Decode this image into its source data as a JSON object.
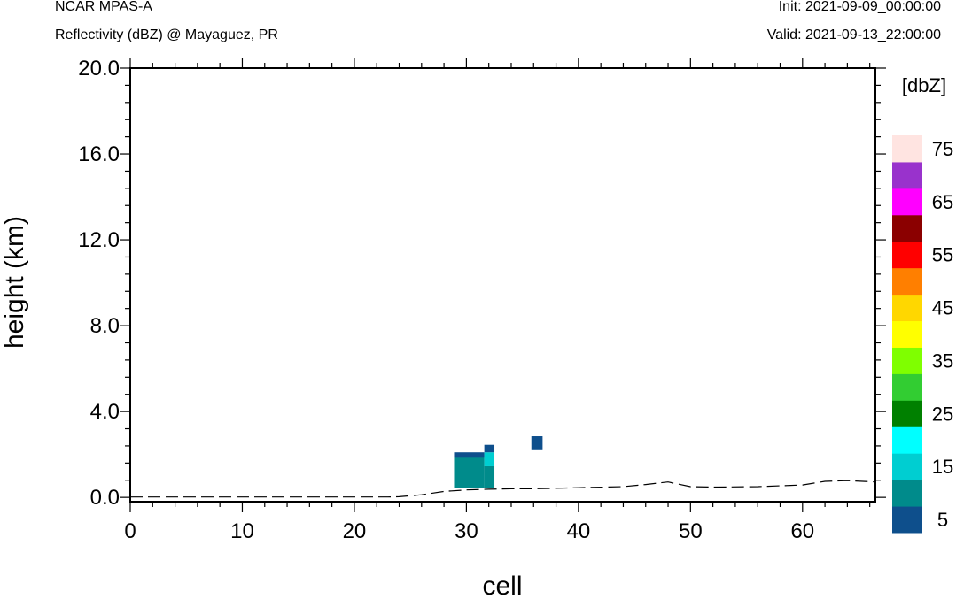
{
  "header": {
    "title": "NCAR MPAS-A",
    "subtitle": "Reflectivity (dBZ) @ Mayaguez, PR",
    "init": "Init: 2021-09-09_00:00:00",
    "valid": "Valid: 2021-09-13_22:00:00"
  },
  "chart_data": {
    "type": "heatmap",
    "xlabel": "cell",
    "ylabel": "height (km)",
    "xlim": [
      0,
      66.5
    ],
    "ylim": [
      -0.2,
      20.0
    ],
    "x_ticks": [
      0,
      10,
      20,
      30,
      40,
      50,
      60
    ],
    "x_tick_labels": [
      "0",
      "10",
      "20",
      "30",
      "40",
      "50",
      "60"
    ],
    "y_ticks": [
      0,
      4,
      8,
      12,
      16,
      20
    ],
    "y_tick_labels": [
      "0.0",
      "4.0",
      "8.0",
      "12.0",
      "16.0",
      "20.0"
    ],
    "grid": false,
    "colorbar": {
      "title": "[dbZ]",
      "levels": [
        5,
        10,
        15,
        20,
        25,
        30,
        35,
        40,
        45,
        50,
        55,
        60,
        65,
        70,
        75
      ],
      "colors": [
        "#0e4f8c",
        "#008b8b",
        "#00ced1",
        "#00ffff",
        "#008000",
        "#32cd32",
        "#7fff00",
        "#ffff00",
        "#ffd700",
        "#ff7f00",
        "#ff0000",
        "#8b0000",
        "#ff00ff",
        "#9932cc",
        "#ffe4e1"
      ],
      "tick_labels": [
        "5",
        "15",
        "25",
        "35",
        "45",
        "55",
        "65",
        "75"
      ]
    },
    "cells": [
      {
        "x0": 28.9,
        "x1": 31.6,
        "y0": 0.45,
        "y1": 2.05,
        "dbz": 10
      },
      {
        "x0": 28.9,
        "x1": 31.6,
        "y0": 1.85,
        "y1": 2.1,
        "dbz": 5
      },
      {
        "x0": 31.6,
        "x1": 32.5,
        "y0": 0.45,
        "y1": 1.45,
        "dbz": 10
      },
      {
        "x0": 31.6,
        "x1": 32.5,
        "y0": 1.45,
        "y1": 2.1,
        "dbz": 15
      },
      {
        "x0": 31.6,
        "x1": 32.5,
        "y0": 2.1,
        "y1": 2.45,
        "dbz": 5
      },
      {
        "x0": 35.8,
        "x1": 36.8,
        "y0": 2.2,
        "y1": 2.85,
        "dbz": 5
      }
    ],
    "terrain": {
      "x": [
        0,
        23,
        24,
        26,
        28,
        30,
        32,
        34,
        36,
        40,
        44,
        46,
        48,
        50,
        52,
        56,
        60,
        62,
        64,
        66.5
      ],
      "y": [
        0.02,
        0.02,
        0.03,
        0.12,
        0.28,
        0.35,
        0.38,
        0.4,
        0.4,
        0.45,
        0.5,
        0.6,
        0.72,
        0.5,
        0.48,
        0.5,
        0.58,
        0.75,
        0.78,
        0.72
      ]
    }
  }
}
